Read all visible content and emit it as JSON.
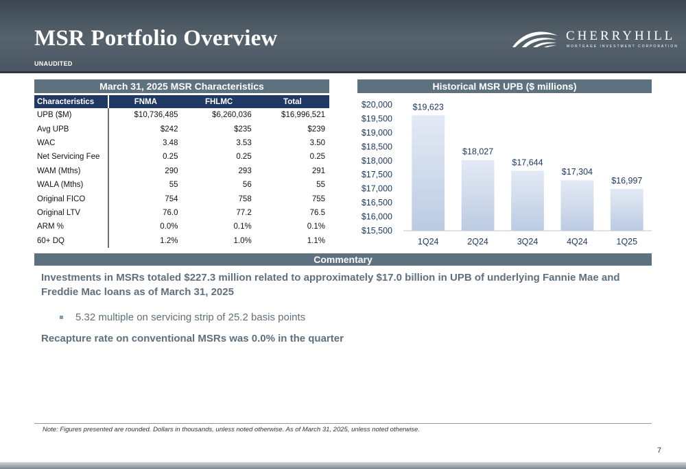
{
  "header": {
    "title": "MSR Portfolio Overview",
    "subtitle": "UNAUDITED",
    "logo_name": "CHERRYHILL",
    "logo_tagline": "MORTGAGE INVESTMENT CORPORATION"
  },
  "table": {
    "title": "March 31, 2025 MSR Characteristics",
    "columns": [
      "Characteristics",
      "FNMA",
      "FHLMC",
      "Total"
    ],
    "rows": [
      [
        "UPB ($M)",
        "$10,736,485",
        "$6,260,036",
        "$16,996,521"
      ],
      [
        "Avg UPB",
        "$242",
        "$235",
        "$239"
      ],
      [
        "WAC",
        "3.48",
        "3.53",
        "3.50"
      ],
      [
        "Net Servicing Fee",
        "0.25",
        "0.25",
        "0.25"
      ],
      [
        "WAM (Mths)",
        "290",
        "293",
        "291"
      ],
      [
        "WALA (Mths)",
        "55",
        "56",
        "55"
      ],
      [
        "Original FICO",
        "754",
        "758",
        "755"
      ],
      [
        "Original LTV",
        "76.0",
        "77.2",
        "76.5"
      ],
      [
        "ARM %",
        "0.0%",
        "0.1%",
        "0.1%"
      ],
      [
        "60+ DQ",
        "1.2%",
        "1.0%",
        "1.1%"
      ]
    ]
  },
  "chart_data": {
    "type": "bar",
    "title": "Historical MSR UPB ($ millions)",
    "categories": [
      "1Q24",
      "2Q24",
      "3Q24",
      "4Q24",
      "1Q25"
    ],
    "values": [
      19623,
      18027,
      17644,
      17304,
      16997
    ],
    "data_labels": [
      "$19,623",
      "$18,027",
      "$17,644",
      "$17,304",
      "$16,997"
    ],
    "ylim": [
      15500,
      20000
    ],
    "yticks": [
      15500,
      16000,
      16500,
      17000,
      17500,
      18000,
      18500,
      19000,
      19500,
      20000
    ],
    "ytick_labels": [
      "$15,500",
      "$16,000",
      "$16,500",
      "$17,000",
      "$17,500",
      "$18,000",
      "$18,500",
      "$19,000",
      "$19,500",
      "$20,000"
    ],
    "grid": false,
    "colors": {
      "bar_top": "#e3eaf4",
      "bar_bottom": "#bccbe2",
      "text": "#1f3864",
      "axis": "#c0c6cc"
    }
  },
  "commentary": {
    "title": "Commentary",
    "paragraph1": "Investments in MSRs totaled $227.3 million related to approximately $17.0 billion in UPB of underlying Fannie Mae and Freddie Mac loans as of March 31, 2025",
    "bullet": "5.32 multiple on servicing strip of 25.2 basis points",
    "paragraph2": "Recapture rate on conventional MSRs was 0.0% in the quarter"
  },
  "footnote": "Note: Figures presented are rounded. Dollars in thousands, unless noted otherwise. As of March 31, 2025, unless noted otherwise.",
  "page_number": "7"
}
